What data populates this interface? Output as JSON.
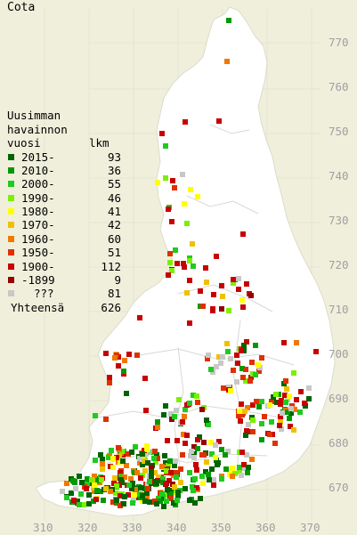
{
  "map": {
    "title": "Cota",
    "background": "#efefdc",
    "land_color": "#ffffff",
    "grid_color": "#e4e4d4",
    "y_ticks": [
      "770",
      "760",
      "750",
      "740",
      "730",
      "720",
      "710",
      "700",
      "690",
      "680",
      "670"
    ],
    "x_ticks": [
      "310",
      "320",
      "330",
      "340",
      "350",
      "360",
      "370"
    ]
  },
  "legend": {
    "heading": [
      "Uusimman",
      "havainnon"
    ],
    "col_year": "vuosi",
    "col_count": "lkm",
    "rows": [
      {
        "label": "2015-",
        "count": "93",
        "color": "#006400"
      },
      {
        "label": "2010-",
        "count": "36",
        "color": "#009a00"
      },
      {
        "label": "2000-",
        "count": "55",
        "color": "#1fcb1f"
      },
      {
        "label": "1990-",
        "count": "46",
        "color": "#7cf000"
      },
      {
        "label": "1980-",
        "count": "41",
        "color": "#ffff00"
      },
      {
        "label": "1970-",
        "count": "42",
        "color": "#f0c000"
      },
      {
        "label": "1960-",
        "count": "60",
        "color": "#f07800"
      },
      {
        "label": "1950-",
        "count": "51",
        "color": "#e03000"
      },
      {
        "label": "1900-",
        "count": "112",
        "color": "#c80000"
      },
      {
        "label": "-1899",
        "count": "9",
        "color": "#960000"
      },
      {
        "label": "???",
        "count": "81",
        "color": "#c8c8c8"
      }
    ],
    "total_label": "Yhteensä",
    "total_count": "626"
  }
}
